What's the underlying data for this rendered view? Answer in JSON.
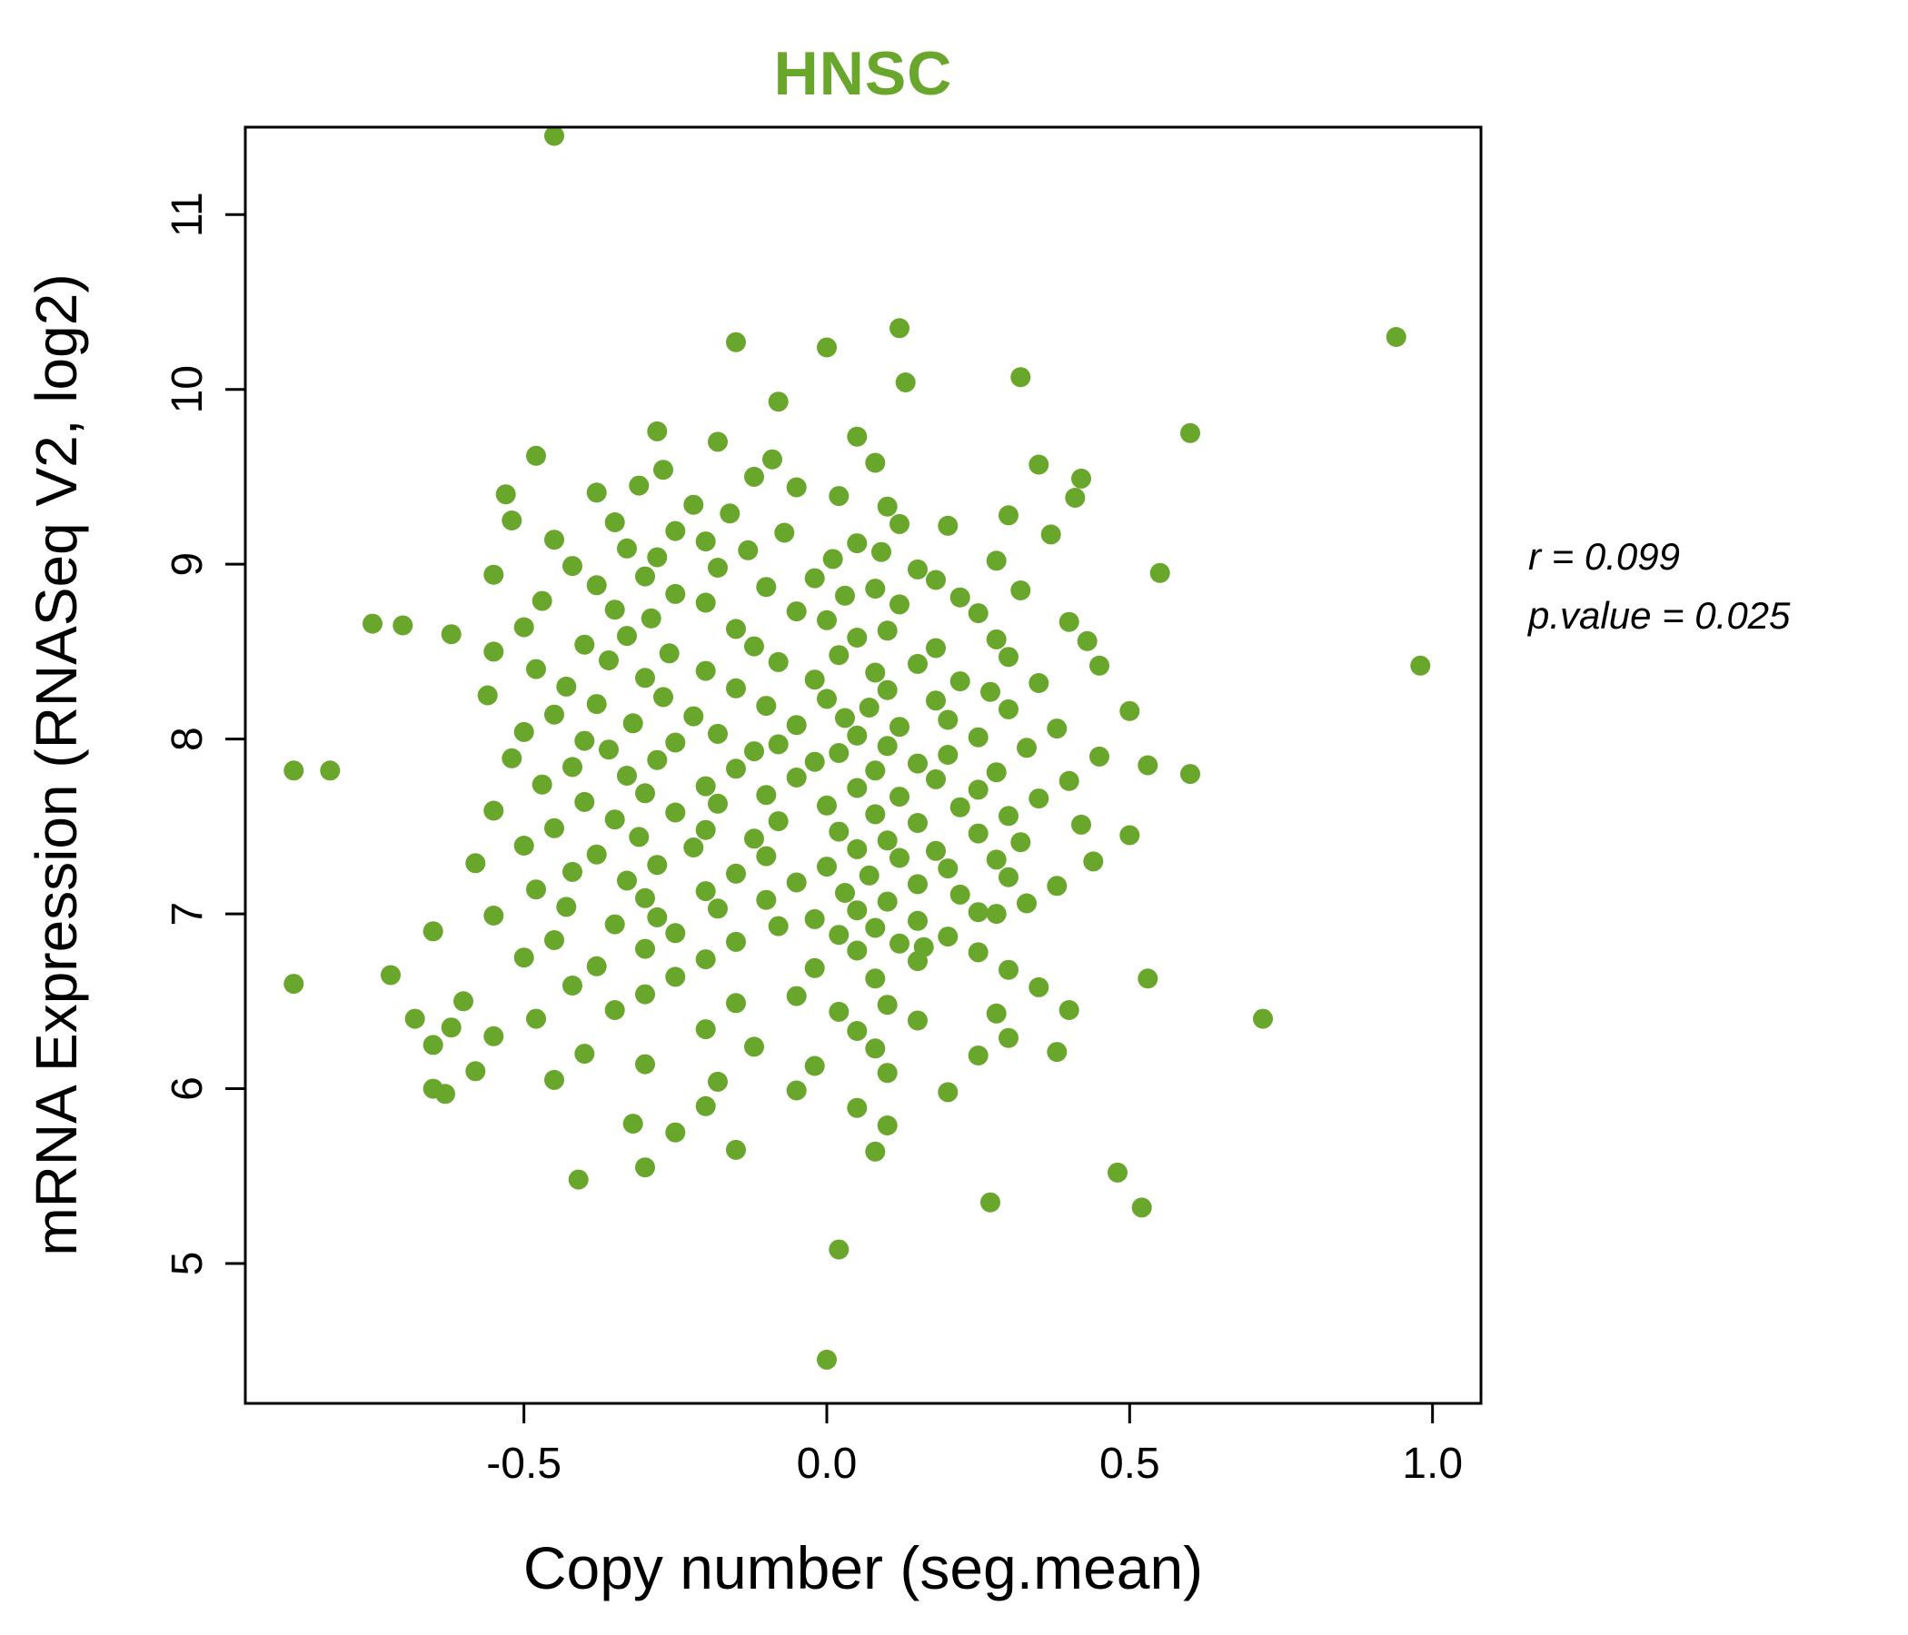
{
  "title": "HNSC",
  "annotation": {
    "line1": "r = 0.099",
    "line2": "p.value = 0.025"
  },
  "chart_data": {
    "type": "scatter",
    "title": "HNSC",
    "title_color": "#69a62c",
    "point_color": "#69a62c",
    "xlabel": "Copy number (seg.mean)",
    "ylabel": "mRNA Expression (RNASeq V2, log2)",
    "xlim": [
      -0.96,
      1.08
    ],
    "ylim": [
      4.2,
      11.5
    ],
    "xticks": [
      -0.5,
      0.0,
      0.5,
      1.0
    ],
    "xtick_labels": [
      "-0.5",
      "0.0",
      "0.5",
      "1.0"
    ],
    "yticks": [
      5,
      6,
      7,
      8,
      9,
      10,
      11
    ],
    "ytick_labels": [
      "5",
      "6",
      "7",
      "8",
      "9",
      "10",
      "11"
    ],
    "grid": false,
    "legend": "none",
    "r": 0.099,
    "p_value": 0.025,
    "points": [
      [
        -0.45,
        11.45
      ],
      [
        0.94,
        10.3
      ],
      [
        0.12,
        10.35
      ],
      [
        -0.15,
        10.27
      ],
      [
        0.0,
        10.24
      ],
      [
        0.32,
        10.07
      ],
      [
        0.13,
        10.04
      ],
      [
        -0.08,
        9.93
      ],
      [
        -0.28,
        9.76
      ],
      [
        0.6,
        9.75
      ],
      [
        0.05,
        9.73
      ],
      [
        -0.18,
        9.7
      ],
      [
        -0.48,
        9.62
      ],
      [
        -0.09,
        9.6
      ],
      [
        0.08,
        9.58
      ],
      [
        0.35,
        9.57
      ],
      [
        -0.27,
        9.54
      ],
      [
        -0.12,
        9.5
      ],
      [
        0.42,
        9.49
      ],
      [
        -0.31,
        9.45
      ],
      [
        -0.05,
        9.44
      ],
      [
        -0.38,
        9.41
      ],
      [
        -0.53,
        9.4
      ],
      [
        0.02,
        9.39
      ],
      [
        0.41,
        9.38
      ],
      [
        -0.22,
        9.34
      ],
      [
        0.1,
        9.33
      ],
      [
        -0.16,
        9.29
      ],
      [
        0.3,
        9.28
      ],
      [
        -0.52,
        9.25
      ],
      [
        -0.35,
        9.24
      ],
      [
        0.12,
        9.23
      ],
      [
        0.2,
        9.22
      ],
      [
        -0.25,
        9.19
      ],
      [
        -0.07,
        9.18
      ],
      [
        0.37,
        9.17
      ],
      [
        -0.45,
        9.14
      ],
      [
        -0.2,
        9.13
      ],
      [
        0.05,
        9.12
      ],
      [
        -0.33,
        9.09
      ],
      [
        -0.13,
        9.08
      ],
      [
        0.09,
        9.07
      ],
      [
        -0.28,
        9.04
      ],
      [
        0.01,
        9.03
      ],
      [
        0.28,
        9.02
      ],
      [
        -0.42,
        8.99
      ],
      [
        -0.18,
        8.98
      ],
      [
        0.15,
        8.97
      ],
      [
        0.55,
        8.95
      ],
      [
        -0.55,
        8.94
      ],
      [
        -0.3,
        8.93
      ],
      [
        -0.02,
        8.92
      ],
      [
        0.18,
        8.91
      ],
      [
        -0.38,
        8.88
      ],
      [
        -0.1,
        8.87
      ],
      [
        0.08,
        8.86
      ],
      [
        0.32,
        8.85
      ],
      [
        -0.25,
        8.83
      ],
      [
        0.03,
        8.82
      ],
      [
        0.22,
        8.81
      ],
      [
        -0.47,
        8.79
      ],
      [
        -0.2,
        8.78
      ],
      [
        0.12,
        8.77
      ],
      [
        -0.35,
        8.74
      ],
      [
        -0.05,
        8.73
      ],
      [
        0.25,
        8.72
      ],
      [
        -0.29,
        8.69
      ],
      [
        0.0,
        8.68
      ],
      [
        0.4,
        8.67
      ],
      [
        -0.75,
        8.66
      ],
      [
        -0.7,
        8.65
      ],
      [
        -0.5,
        8.64
      ],
      [
        -0.15,
        8.63
      ],
      [
        0.1,
        8.62
      ],
      [
        -0.62,
        8.6
      ],
      [
        -0.33,
        8.59
      ],
      [
        0.05,
        8.58
      ],
      [
        0.28,
        8.57
      ],
      [
        0.43,
        8.56
      ],
      [
        -0.4,
        8.54
      ],
      [
        -0.12,
        8.53
      ],
      [
        0.18,
        8.52
      ],
      [
        -0.55,
        8.5
      ],
      [
        -0.26,
        8.49
      ],
      [
        0.02,
        8.48
      ],
      [
        0.3,
        8.47
      ],
      [
        -0.36,
        8.45
      ],
      [
        -0.08,
        8.44
      ],
      [
        0.15,
        8.43
      ],
      [
        0.45,
        8.42
      ],
      [
        0.98,
        8.42
      ],
      [
        -0.48,
        8.4
      ],
      [
        -0.2,
        8.39
      ],
      [
        0.08,
        8.38
      ],
      [
        -0.3,
        8.35
      ],
      [
        -0.02,
        8.34
      ],
      [
        0.22,
        8.33
      ],
      [
        0.35,
        8.32
      ],
      [
        -0.43,
        8.3
      ],
      [
        -0.15,
        8.29
      ],
      [
        0.1,
        8.28
      ],
      [
        0.27,
        8.27
      ],
      [
        -0.56,
        8.25
      ],
      [
        -0.27,
        8.24
      ],
      [
        0.0,
        8.23
      ],
      [
        0.18,
        8.22
      ],
      [
        -0.38,
        8.2
      ],
      [
        -0.1,
        8.19
      ],
      [
        0.07,
        8.18
      ],
      [
        0.3,
        8.17
      ],
      [
        0.5,
        8.16
      ],
      [
        -0.45,
        8.14
      ],
      [
        -0.22,
        8.13
      ],
      [
        0.03,
        8.12
      ],
      [
        0.2,
        8.11
      ],
      [
        -0.32,
        8.09
      ],
      [
        -0.05,
        8.08
      ],
      [
        0.12,
        8.07
      ],
      [
        0.38,
        8.06
      ],
      [
        -0.5,
        8.04
      ],
      [
        -0.18,
        8.03
      ],
      [
        0.05,
        8.02
      ],
      [
        0.25,
        8.01
      ],
      [
        -0.4,
        7.99
      ],
      [
        -0.25,
        7.98
      ],
      [
        -0.08,
        7.97
      ],
      [
        0.1,
        7.96
      ],
      [
        0.33,
        7.95
      ],
      [
        -0.36,
        7.94
      ],
      [
        -0.12,
        7.93
      ],
      [
        0.02,
        7.92
      ],
      [
        0.2,
        7.91
      ],
      [
        0.45,
        7.9
      ],
      [
        -0.52,
        7.89
      ],
      [
        -0.28,
        7.88
      ],
      [
        -0.02,
        7.87
      ],
      [
        0.15,
        7.86
      ],
      [
        -0.42,
        7.84
      ],
      [
        -0.88,
        7.82
      ],
      [
        -0.82,
        7.82
      ],
      [
        -0.15,
        7.83
      ],
      [
        0.08,
        7.82
      ],
      [
        0.28,
        7.81
      ],
      [
        0.53,
        7.85
      ],
      [
        -0.33,
        7.79
      ],
      [
        -0.05,
        7.78
      ],
      [
        0.18,
        7.77
      ],
      [
        0.4,
        7.76
      ],
      [
        0.6,
        7.8
      ],
      [
        -0.47,
        7.74
      ],
      [
        -0.2,
        7.73
      ],
      [
        0.05,
        7.72
      ],
      [
        0.25,
        7.71
      ],
      [
        -0.3,
        7.69
      ],
      [
        -0.1,
        7.68
      ],
      [
        0.12,
        7.67
      ],
      [
        0.35,
        7.66
      ],
      [
        -0.4,
        7.64
      ],
      [
        -0.18,
        7.63
      ],
      [
        0.0,
        7.62
      ],
      [
        0.22,
        7.61
      ],
      [
        -0.55,
        7.59
      ],
      [
        -0.25,
        7.58
      ],
      [
        0.08,
        7.57
      ],
      [
        0.3,
        7.56
      ],
      [
        -0.35,
        7.54
      ],
      [
        -0.08,
        7.53
      ],
      [
        0.15,
        7.52
      ],
      [
        0.42,
        7.51
      ],
      [
        -0.45,
        7.49
      ],
      [
        -0.2,
        7.48
      ],
      [
        0.02,
        7.47
      ],
      [
        0.25,
        7.46
      ],
      [
        0.5,
        7.45
      ],
      [
        -0.31,
        7.44
      ],
      [
        -0.12,
        7.43
      ],
      [
        0.1,
        7.42
      ],
      [
        0.32,
        7.41
      ],
      [
        -0.5,
        7.39
      ],
      [
        -0.22,
        7.38
      ],
      [
        0.05,
        7.37
      ],
      [
        0.18,
        7.36
      ],
      [
        -0.38,
        7.34
      ],
      [
        -0.1,
        7.33
      ],
      [
        0.12,
        7.32
      ],
      [
        0.28,
        7.31
      ],
      [
        -0.58,
        7.29
      ],
      [
        -0.28,
        7.28
      ],
      [
        0.0,
        7.27
      ],
      [
        0.2,
        7.26
      ],
      [
        0.44,
        7.3
      ],
      [
        -0.42,
        7.24
      ],
      [
        -0.15,
        7.23
      ],
      [
        0.07,
        7.22
      ],
      [
        0.3,
        7.21
      ],
      [
        -0.33,
        7.19
      ],
      [
        -0.05,
        7.18
      ],
      [
        0.15,
        7.17
      ],
      [
        0.38,
        7.16
      ],
      [
        -0.48,
        7.14
      ],
      [
        -0.2,
        7.13
      ],
      [
        0.03,
        7.12
      ],
      [
        0.22,
        7.11
      ],
      [
        -0.3,
        7.09
      ],
      [
        -0.1,
        7.08
      ],
      [
        0.1,
        7.07
      ],
      [
        0.33,
        7.06
      ],
      [
        -0.43,
        7.04
      ],
      [
        -0.18,
        7.03
      ],
      [
        0.05,
        7.02
      ],
      [
        0.25,
        7.01
      ],
      [
        -0.55,
        6.99
      ],
      [
        -0.28,
        6.98
      ],
      [
        -0.02,
        6.97
      ],
      [
        0.15,
        6.96
      ],
      [
        0.28,
        7.0
      ],
      [
        -0.35,
        6.94
      ],
      [
        -0.08,
        6.93
      ],
      [
        0.08,
        6.92
      ],
      [
        -0.65,
        6.9
      ],
      [
        -0.25,
        6.89
      ],
      [
        0.02,
        6.88
      ],
      [
        0.2,
        6.87
      ],
      [
        -0.45,
        6.85
      ],
      [
        -0.15,
        6.84
      ],
      [
        0.12,
        6.83
      ],
      [
        -0.3,
        6.8
      ],
      [
        0.05,
        6.79
      ],
      [
        0.16,
        6.81
      ],
      [
        0.25,
        6.78
      ],
      [
        -0.5,
        6.75
      ],
      [
        -0.2,
        6.74
      ],
      [
        0.15,
        6.73
      ],
      [
        -0.38,
        6.7
      ],
      [
        -0.02,
        6.69
      ],
      [
        0.3,
        6.68
      ],
      [
        -0.72,
        6.65
      ],
      [
        -0.25,
        6.64
      ],
      [
        0.08,
        6.63
      ],
      [
        0.53,
        6.63
      ],
      [
        -0.88,
        6.6
      ],
      [
        -0.42,
        6.59
      ],
      [
        0.35,
        6.58
      ],
      [
        -0.3,
        6.54
      ],
      [
        -0.05,
        6.53
      ],
      [
        -0.6,
        6.5
      ],
      [
        -0.15,
        6.49
      ],
      [
        0.1,
        6.48
      ],
      [
        -0.35,
        6.45
      ],
      [
        0.02,
        6.44
      ],
      [
        0.28,
        6.43
      ],
      [
        0.4,
        6.45
      ],
      [
        -0.68,
        6.4
      ],
      [
        -0.48,
        6.4
      ],
      [
        0.72,
        6.4
      ],
      [
        0.15,
        6.39
      ],
      [
        -0.62,
        6.35
      ],
      [
        -0.2,
        6.34
      ],
      [
        0.05,
        6.33
      ],
      [
        -0.55,
        6.3
      ],
      [
        0.3,
        6.29
      ],
      [
        -0.65,
        6.25
      ],
      [
        -0.12,
        6.24
      ],
      [
        0.08,
        6.23
      ],
      [
        -0.4,
        6.2
      ],
      [
        0.25,
        6.19
      ],
      [
        0.38,
        6.21
      ],
      [
        -0.3,
        6.14
      ],
      [
        -0.02,
        6.13
      ],
      [
        -0.58,
        6.1
      ],
      [
        0.1,
        6.09
      ],
      [
        -0.45,
        6.05
      ],
      [
        -0.18,
        6.04
      ],
      [
        -0.65,
        6.0
      ],
      [
        -0.05,
        5.99
      ],
      [
        0.2,
        5.98
      ],
      [
        -0.63,
        5.97
      ],
      [
        -0.2,
        5.9
      ],
      [
        0.05,
        5.89
      ],
      [
        -0.32,
        5.8
      ],
      [
        0.1,
        5.79
      ],
      [
        -0.25,
        5.75
      ],
      [
        -0.15,
        5.65
      ],
      [
        0.08,
        5.64
      ],
      [
        0.48,
        5.52
      ],
      [
        -0.3,
        5.55
      ],
      [
        -0.41,
        5.48
      ],
      [
        0.27,
        5.35
      ],
      [
        0.52,
        5.32
      ],
      [
        0.02,
        5.08
      ],
      [
        0.0,
        4.45
      ]
    ]
  }
}
